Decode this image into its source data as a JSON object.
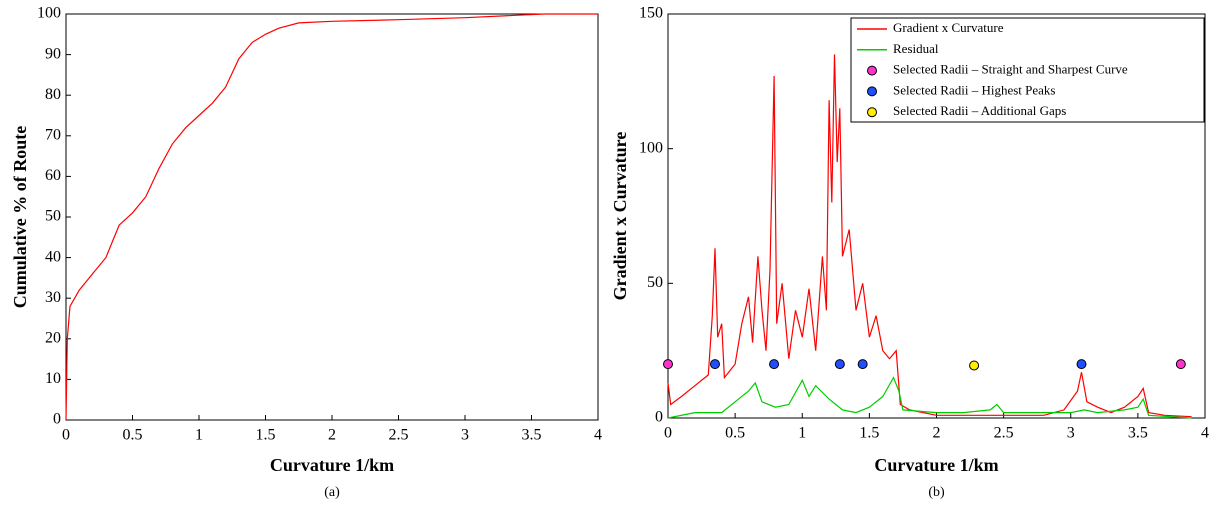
{
  "chart_data": [
    {
      "type": "line",
      "caption": "(a)",
      "x_label": "Curvature 1/km",
      "y_label": "Cumulative % of Route",
      "xlim": [
        0,
        4
      ],
      "xticks": [
        0,
        0.5,
        1,
        1.5,
        2,
        2.5,
        3,
        3.5,
        4
      ],
      "ylim": [
        0,
        100
      ],
      "yticks": [
        0,
        10,
        20,
        30,
        40,
        50,
        60,
        70,
        80,
        90,
        100
      ],
      "series": [
        {
          "color": "#ff0000",
          "mode": "line",
          "x": [
            0,
            0.01,
            0.03,
            0.1,
            0.2,
            0.3,
            0.35,
            0.4,
            0.5,
            0.6,
            0.7,
            0.8,
            0.9,
            1.0,
            1.1,
            1.2,
            1.3,
            1.4,
            1.5,
            1.6,
            1.75,
            2.0,
            2.5,
            3.0,
            3.4,
            3.6,
            4
          ],
          "values": [
            0,
            20,
            28,
            32,
            36,
            40,
            44,
            48,
            51,
            55,
            62,
            68,
            72,
            75,
            78,
            82,
            89,
            93,
            95,
            96.5,
            97.8,
            98.2,
            98.6,
            99.1,
            99.7,
            100,
            100
          ]
        }
      ]
    },
    {
      "type": "line",
      "caption": "(b)",
      "x_label": "Curvature 1/km",
      "y_label": "Gradient x Curvature",
      "xlim": [
        0,
        4
      ],
      "xticks": [
        0,
        0.5,
        1,
        1.5,
        2,
        2.5,
        3,
        3.5,
        4
      ],
      "ylim": [
        0,
        150
      ],
      "yticks": [
        0,
        50,
        100,
        150
      ],
      "legend": "upper right",
      "series": [
        {
          "name": "Gradient x Curvature",
          "color": "#ff0000",
          "mode": "line",
          "x": [
            0,
            0.02,
            0.1,
            0.2,
            0.3,
            0.33,
            0.35,
            0.37,
            0.4,
            0.42,
            0.5,
            0.55,
            0.6,
            0.63,
            0.67,
            0.7,
            0.73,
            0.76,
            0.79,
            0.81,
            0.85,
            0.9,
            0.95,
            1.0,
            1.05,
            1.1,
            1.15,
            1.18,
            1.2,
            1.22,
            1.24,
            1.26,
            1.28,
            1.3,
            1.35,
            1.4,
            1.45,
            1.5,
            1.55,
            1.6,
            1.65,
            1.7,
            1.73,
            1.8,
            2.0,
            2.5,
            2.8,
            2.95,
            3.05,
            3.08,
            3.12,
            3.2,
            3.3,
            3.4,
            3.5,
            3.54,
            3.58,
            3.7,
            3.9
          ],
          "values": [
            13,
            5,
            8,
            12,
            16,
            38,
            63,
            30,
            35,
            15,
            20,
            35,
            45,
            28,
            60,
            40,
            25,
            55,
            127,
            35,
            50,
            22,
            40,
            30,
            48,
            25,
            60,
            40,
            118,
            80,
            135,
            95,
            115,
            60,
            70,
            40,
            50,
            30,
            38,
            25,
            22,
            25,
            5,
            3,
            1,
            1,
            1,
            3,
            10,
            17,
            6,
            4,
            2,
            4,
            8,
            11,
            2,
            1,
            0.5
          ]
        },
        {
          "name": "Residual",
          "color": "#00cc00",
          "mode": "line",
          "x": [
            0,
            0.2,
            0.4,
            0.5,
            0.6,
            0.65,
            0.7,
            0.8,
            0.9,
            1.0,
            1.05,
            1.1,
            1.2,
            1.3,
            1.4,
            1.5,
            1.6,
            1.68,
            1.72,
            1.75,
            2.0,
            2.2,
            2.4,
            2.45,
            2.5,
            2.8,
            3.0,
            3.1,
            3.2,
            3.4,
            3.5,
            3.54,
            3.58,
            3.9
          ],
          "values": [
            0,
            2,
            2,
            6,
            10,
            13,
            6,
            4,
            5,
            14,
            8,
            12,
            7,
            3,
            2,
            4,
            8,
            15,
            10,
            3,
            2,
            2,
            3,
            5,
            2,
            2,
            2,
            3,
            2,
            3,
            4,
            7,
            1,
            0
          ]
        },
        {
          "name": "Selected Radii – Straight and Sharpest Curve",
          "color": "#ff33cc",
          "mode": "marker",
          "x": [
            0,
            3.82
          ],
          "values": [
            20,
            20
          ]
        },
        {
          "name": "Selected Radii – Highest Peaks",
          "color": "#1f4fff",
          "mode": "marker",
          "x": [
            0.35,
            0.79,
            1.28,
            1.45,
            3.08
          ],
          "values": [
            20,
            20,
            20,
            20,
            20
          ]
        },
        {
          "name": "Selected Radii – Additional Gaps",
          "color": "#ffee00",
          "mode": "marker",
          "x": [
            2.28
          ],
          "values": [
            19.5
          ]
        }
      ]
    }
  ]
}
